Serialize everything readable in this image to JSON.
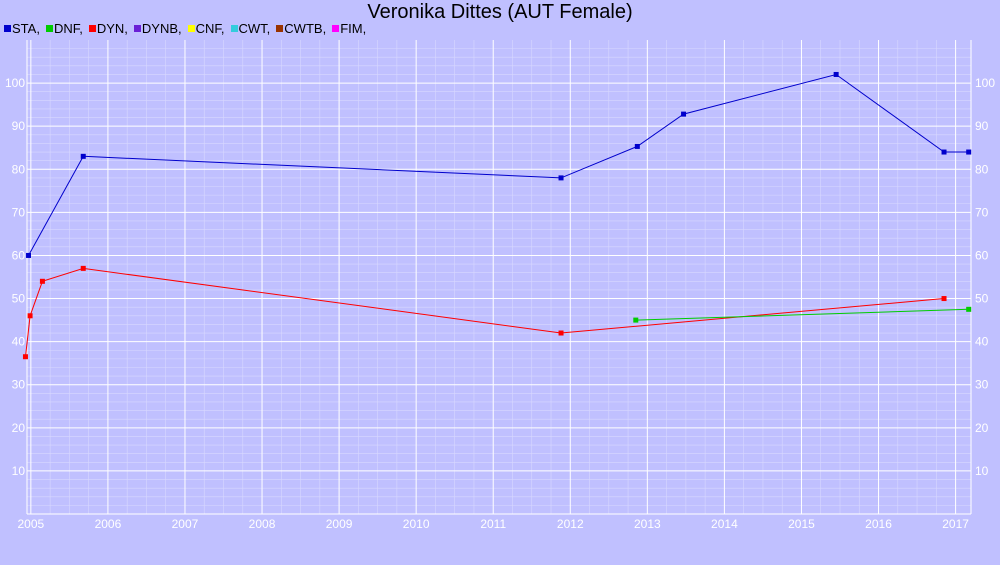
{
  "chart_data": {
    "type": "line",
    "title": "Veronika Dittes (AUT Female)",
    "xlabel": "",
    "ylabel": "",
    "xlim": [
      2004.95,
      2017.2
    ],
    "ylim": [
      0,
      110
    ],
    "x_ticks": [
      2005,
      2006,
      2007,
      2008,
      2009,
      2010,
      2011,
      2012,
      2013,
      2014,
      2015,
      2016,
      2017
    ],
    "y_ticks": [
      10,
      20,
      30,
      40,
      50,
      60,
      70,
      80,
      90,
      100
    ],
    "grid": true,
    "legend_position": "top-left",
    "legend": [
      {
        "name": "STA",
        "color": "#0000cc"
      },
      {
        "name": "DNF",
        "color": "#00cc00"
      },
      {
        "name": "DYN",
        "color": "#ff0000"
      },
      {
        "name": "DYNB",
        "color": "#6a1fd6"
      },
      {
        "name": "CNF",
        "color": "#ffff00"
      },
      {
        "name": "CWT",
        "color": "#33ccdd"
      },
      {
        "name": "CWTB",
        "color": "#993300"
      },
      {
        "name": "FIM",
        "color": "#ff00ff"
      }
    ],
    "series": [
      {
        "name": "STA",
        "color": "#0000cc",
        "x": [
          2004.97,
          2005.68,
          2011.88,
          2012.87,
          2013.47,
          2015.45,
          2016.85,
          2017.17
        ],
        "y": [
          60,
          83,
          78,
          85.3,
          92.8,
          102,
          84,
          84
        ]
      },
      {
        "name": "DYN",
        "color": "#ff0000",
        "x": [
          2004.93,
          2004.99,
          2005.15,
          2005.68,
          2011.88,
          2016.85
        ],
        "y": [
          36.5,
          46,
          54,
          57,
          42,
          50
        ]
      },
      {
        "name": "DNF",
        "color": "#00cc00",
        "x": [
          2012.85,
          2017.17
        ],
        "y": [
          45,
          47.5
        ]
      }
    ]
  }
}
